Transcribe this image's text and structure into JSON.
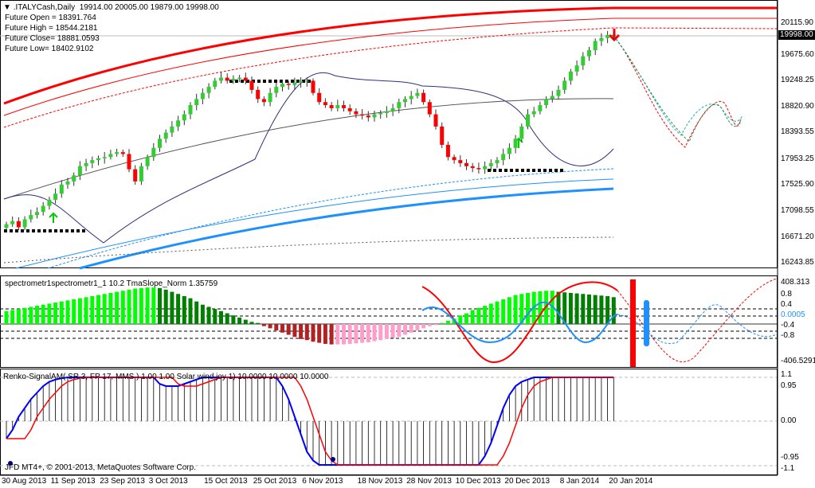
{
  "header": {
    "symbol": ".ITALYCash,Daily",
    "ohlc": "19914.00 20005.00 19879.00 19998.00"
  },
  "future": [
    "Future Open = 18391.764",
    "Future High = 18544.2181",
    "Future Close= 18881.0593",
    "Future Low= 18402.9102"
  ],
  "current_price": "19998.00",
  "price_axis": [
    "20115.90",
    "19675.60",
    "19248.25",
    "18820.90",
    "18393.55",
    "17953.25",
    "17525.90",
    "17098.55",
    "16671.20",
    "16243.85"
  ],
  "spectro": {
    "title": "spectrometr1spectrometr1_1  10.2 TmaSlope_Norm 1.35759",
    "axis": [
      "408.313",
      "0.8",
      "0.4",
      "0.0005",
      "-0.4",
      "-0.8",
      "-406.5291"
    ]
  },
  "renko": {
    "title": "Renko-SignalAM( SR 3, FP 17, MMS ) 1.00 1.00  Solar wind joy 1) 10.0000 10.0000 10.0000",
    "axis": [
      "1.1",
      "0.95",
      "0.00",
      "-0.95",
      "-1.1"
    ]
  },
  "copyright": "JFD MT4+, © 2001-2013, MetaQuotes Software Corp.",
  "dates": [
    {
      "label": "30 Aug 2013",
      "bar": 0
    },
    {
      "label": "11 Sep 2013",
      "bar": 8
    },
    {
      "label": "23 Sep 2013",
      "bar": 16
    },
    {
      "label": "3 Oct 2013",
      "bar": 24
    },
    {
      "label": "15 Oct 2013",
      "bar": 33
    },
    {
      "label": "25 Oct 2013",
      "bar": 41
    },
    {
      "label": "6 Nov 2013",
      "bar": 49
    },
    {
      "label": "18 Nov 2013",
      "bar": 58
    },
    {
      "label": "28 Nov 2013",
      "bar": 66
    },
    {
      "label": "10 Dec 2013",
      "bar": 74
    },
    {
      "label": "20 Dec 2013",
      "bar": 82
    },
    {
      "label": "8 Jan 2014",
      "bar": 91
    },
    {
      "label": "20 Jan 2014",
      "bar": 99
    }
  ],
  "colors": {
    "up": "#32cd32",
    "down": "#ff0000",
    "hist_up": "#00ff00",
    "hist_dn": "#008000",
    "neg": "#b22222"
  },
  "chart_data": {
    "type": "candlestick",
    "price_range": [
      16243.85,
      20115.9
    ],
    "close": [
      16900,
      16950,
      16850,
      16980,
      17050,
      17100,
      17200,
      17300,
      17400,
      17550,
      17600,
      17700,
      17850,
      17900,
      17950,
      17980,
      18000,
      18050,
      18080,
      18050,
      17800,
      17600,
      17850,
      18000,
      18150,
      18300,
      18400,
      18500,
      18600,
      18700,
      18850,
      18950,
      19050,
      19150,
      19250,
      19300,
      19250,
      19280,
      19300,
      19250,
      19100,
      18950,
      18900,
      19050,
      19150,
      19200,
      19180,
      19220,
      19240,
      19250,
      19050,
      18900,
      18850,
      18800,
      18850,
      18800,
      18750,
      18700,
      18680,
      18650,
      18700,
      18720,
      18750,
      18800,
      18900,
      18950,
      19000,
      19050,
      18900,
      18700,
      18500,
      18200,
      18000,
      17950,
      17900,
      17850,
      17820,
      17800,
      17850,
      17900,
      17950,
      18050,
      18150,
      18300,
      18500,
      18700,
      18750,
      18850,
      18950,
      19000,
      19100,
      19250,
      19400,
      19500,
      19650,
      19750,
      19900,
      19950,
      20000,
      19998
    ],
    "histogram": [
      120,
      130,
      140,
      150,
      160,
      170,
      180,
      190,
      200,
      210,
      220,
      230,
      240,
      250,
      260,
      270,
      280,
      290,
      300,
      310,
      320,
      330,
      335,
      340,
      340,
      335,
      320,
      300,
      280,
      260,
      240,
      210,
      180,
      160,
      140,
      120,
      100,
      80,
      60,
      40,
      20,
      10,
      -20,
      -40,
      -60,
      -80,
      -100,
      -120,
      -140,
      -150,
      -165,
      -175,
      -185,
      -190,
      -190,
      -190,
      -185,
      -180,
      -175,
      -170,
      -160,
      -150,
      -140,
      -130,
      -120,
      -100,
      -80,
      -60,
      -40,
      -20,
      -10,
      10,
      30,
      50,
      80,
      100,
      130,
      150,
      170,
      190,
      210,
      230,
      250,
      270,
      280,
      290,
      300,
      305,
      310,
      310,
      300,
      295,
      290,
      285,
      280,
      275,
      270,
      265,
      260,
      250
    ],
    "signal": [
      -0.4,
      -0.2,
      0.1,
      0.3,
      0.5,
      0.65,
      0.8,
      0.9,
      0.95,
      0.98,
      1,
      1,
      1,
      1,
      1,
      1,
      1,
      1,
      1,
      1,
      1,
      1,
      1,
      1,
      1,
      0.85,
      0.8,
      0.8,
      0.8,
      0.85,
      0.9,
      0.95,
      1,
      1,
      1,
      1,
      1,
      1,
      1,
      1,
      1,
      1,
      1,
      1,
      1,
      0.8,
      0.5,
      0.1,
      -0.3,
      -0.7,
      -0.9,
      -1,
      -1,
      -1,
      -1,
      -1,
      -1,
      -1,
      -1,
      -1,
      -1,
      -1,
      -1,
      -1,
      -1,
      -1,
      -1,
      -1,
      -1,
      -1,
      -1,
      -1,
      -1,
      -1,
      -1,
      -1,
      -1,
      -1,
      -0.8,
      -0.5,
      -0.1,
      0.3,
      0.6,
      0.8,
      0.9,
      0.95,
      1,
      1,
      1,
      1,
      1,
      1,
      1,
      1,
      1,
      1,
      1,
      1,
      1,
      1
    ]
  }
}
